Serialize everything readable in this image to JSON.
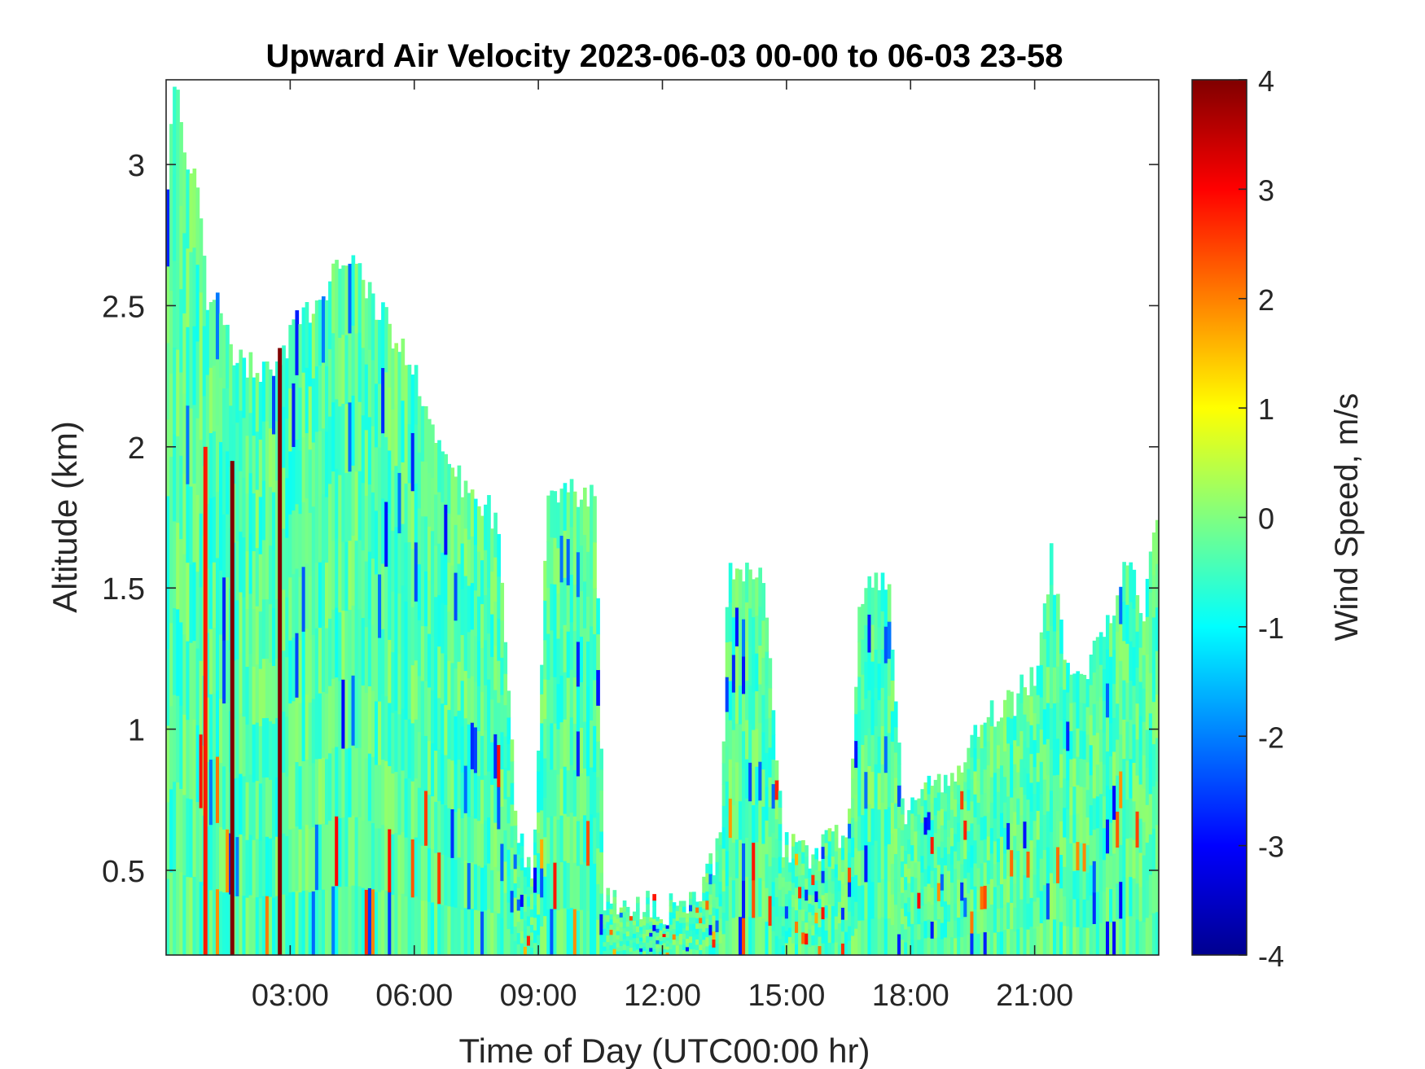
{
  "chart_data": {
    "type": "heatmap",
    "title": "Upward Air Velocity 2023-06-03 00-00 to 06-03 23-58",
    "xlabel": "Time of Day (UTC00:00 hr)",
    "ylabel": "Altitude (km)",
    "colorbar_label": "Wind Speed, m/s",
    "xlim_hours": [
      0,
      24
    ],
    "ylim_km": [
      0.2,
      3.3
    ],
    "clim": [
      -4,
      4
    ],
    "colormap": "jet",
    "x_ticks": [
      {
        "hour": 3,
        "label": "03:00"
      },
      {
        "hour": 6,
        "label": "06:00"
      },
      {
        "hour": 9,
        "label": "09:00"
      },
      {
        "hour": 12,
        "label": "12:00"
      },
      {
        "hour": 15,
        "label": "15:00"
      },
      {
        "hour": 18,
        "label": "18:00"
      },
      {
        "hour": 21,
        "label": "21:00"
      }
    ],
    "y_ticks": [
      {
        "km": 0.5,
        "label": "0.5"
      },
      {
        "km": 1,
        "label": "1"
      },
      {
        "km": 1.5,
        "label": "1.5"
      },
      {
        "km": 2,
        "label": "2"
      },
      {
        "km": 2.5,
        "label": "2.5"
      },
      {
        "km": 3,
        "label": "3"
      }
    ],
    "colorbar_ticks": [
      {
        "value": 4,
        "label": "4"
      },
      {
        "value": 3,
        "label": "3"
      },
      {
        "value": 2,
        "label": "2"
      },
      {
        "value": 1,
        "label": "1"
      },
      {
        "value": 0,
        "label": "0"
      },
      {
        "value": -1,
        "label": "-1"
      },
      {
        "value": -2,
        "label": "-2"
      },
      {
        "value": -3,
        "label": "-3"
      },
      {
        "value": -4,
        "label": "-4"
      }
    ],
    "coverage_top_km": [
      [
        0.0,
        2.8
      ],
      [
        0.2,
        3.3
      ],
      [
        0.5,
        3.0
      ],
      [
        0.8,
        2.9
      ],
      [
        1.0,
        2.5
      ],
      [
        1.3,
        2.5
      ],
      [
        1.6,
        2.3
      ],
      [
        2.0,
        2.3
      ],
      [
        2.4,
        2.25
      ],
      [
        2.7,
        2.3
      ],
      [
        3.0,
        2.4
      ],
      [
        3.5,
        2.5
      ],
      [
        4.0,
        2.6
      ],
      [
        4.5,
        2.7
      ],
      [
        5.0,
        2.5
      ],
      [
        5.5,
        2.4
      ],
      [
        6.0,
        2.3
      ],
      [
        6.5,
        2.0
      ],
      [
        7.0,
        1.9
      ],
      [
        7.5,
        1.8
      ],
      [
        8.0,
        1.75
      ],
      [
        8.5,
        0.6
      ],
      [
        8.9,
        0.5
      ],
      [
        9.2,
        1.8
      ],
      [
        9.8,
        1.85
      ],
      [
        10.4,
        1.8
      ],
      [
        10.6,
        0.4
      ],
      [
        11.0,
        0.4
      ],
      [
        11.5,
        0.38
      ],
      [
        12.0,
        0.37
      ],
      [
        12.5,
        0.35
      ],
      [
        13.0,
        0.45
      ],
      [
        13.4,
        0.6
      ],
      [
        13.6,
        1.6
      ],
      [
        14.0,
        1.55
      ],
      [
        14.5,
        1.5
      ],
      [
        14.9,
        0.6
      ],
      [
        15.5,
        0.55
      ],
      [
        16.0,
        0.6
      ],
      [
        16.5,
        0.65
      ],
      [
        16.8,
        1.5
      ],
      [
        17.5,
        1.5
      ],
      [
        17.8,
        0.7
      ],
      [
        18.5,
        0.8
      ],
      [
        19.0,
        0.85
      ],
      [
        19.5,
        0.95
      ],
      [
        20.0,
        1.05
      ],
      [
        20.5,
        1.1
      ],
      [
        21.0,
        1.2
      ],
      [
        21.4,
        1.6
      ],
      [
        21.8,
        1.2
      ],
      [
        22.2,
        1.2
      ],
      [
        22.6,
        1.3
      ],
      [
        23.0,
        1.5
      ],
      [
        23.3,
        1.65
      ],
      [
        23.6,
        1.4
      ],
      [
        24.0,
        1.8
      ]
    ],
    "vertical_streaks": [
      {
        "hour": 0.95,
        "top_km": 2.0,
        "value": 2.8
      },
      {
        "hour": 1.6,
        "top_km": 1.95,
        "value": 4
      },
      {
        "hour": 2.75,
        "top_km": 2.35,
        "value": 4
      }
    ]
  }
}
